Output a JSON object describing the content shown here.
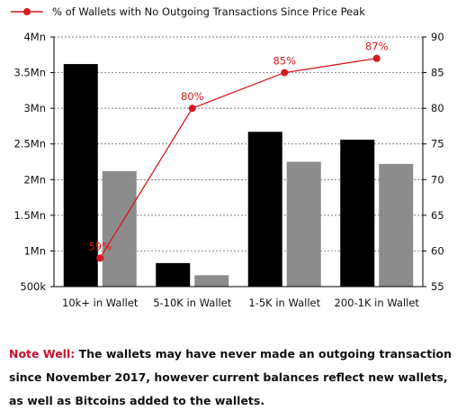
{
  "chart_data": {
    "type": "bar",
    "categories": [
      "10k+ in Wallet",
      "5-10K in Wallet",
      "1-5K in Wallet",
      "200-1K in Wallet"
    ],
    "series": [
      {
        "kind": "bar",
        "axis": "left",
        "color": "#000000",
        "values": [
          3620000,
          830000,
          2670000,
          2560000
        ]
      },
      {
        "kind": "bar",
        "axis": "left",
        "color": "#8c8c8c",
        "values": [
          2120000,
          660000,
          2250000,
          2220000
        ]
      },
      {
        "kind": "line",
        "axis": "right",
        "color": "#d71920",
        "name": "% of Wallets with No Outgoing Transactions Since Price Peak",
        "values": [
          59,
          80,
          85,
          87
        ],
        "value_labels": [
          "59%",
          "80%",
          "85%",
          "87%"
        ]
      }
    ],
    "y_left": {
      "ylim": [
        500000,
        4000000
      ],
      "ticks": [
        500000,
        1000000,
        1500000,
        2000000,
        2500000,
        3000000,
        3500000,
        4000000
      ],
      "tick_labels": [
        "500k",
        "1Mn",
        "1.5Mn",
        "2Mn",
        "2.5Mn",
        "3Mn",
        "3.5Mn",
        "4Mn"
      ]
    },
    "y_right": {
      "ylim": [
        55,
        90
      ],
      "ticks": [
        55,
        60,
        65,
        70,
        75,
        80,
        85,
        90
      ],
      "tick_labels": [
        "55",
        "60",
        "65",
        "70",
        "75",
        "80",
        "85",
        "90"
      ]
    },
    "grid": "horizontal dashed",
    "legend_position": "top-left"
  },
  "note": {
    "lead": "Note Well:",
    "body": " The wallets may have never made an outgoing transaction since November 2017, however current balances reflect new wallets, as well as Bitcoins added to the wallets."
  }
}
